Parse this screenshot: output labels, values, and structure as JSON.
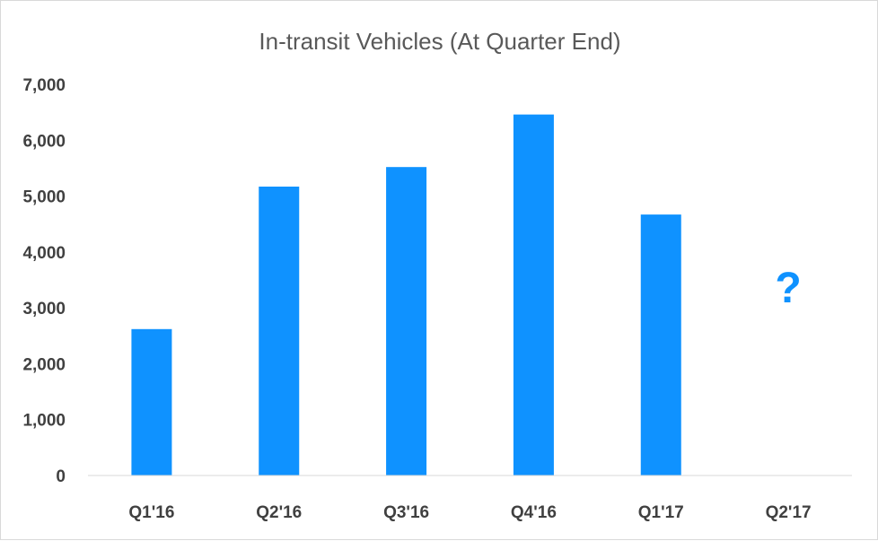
{
  "chart_data": {
    "type": "bar",
    "title": "In-transit Vehicles (At Quarter End)",
    "xlabel": "",
    "ylabel": "",
    "categories": [
      "Q1'16",
      "Q2'16",
      "Q3'16",
      "Q4'16",
      "Q1'17",
      "Q2'17"
    ],
    "values": [
      2620,
      5170,
      5520,
      6460,
      4670,
      null
    ],
    "ylim": [
      0,
      7000
    ],
    "yticks": [
      "0",
      "1,000",
      "2,000",
      "3,000",
      "4,000",
      "5,000",
      "6,000",
      "7,000"
    ],
    "grid": false,
    "legend": "none",
    "bar_color": "#0f92ff",
    "annotations": [
      {
        "category": "Q2'17",
        "text": "?",
        "color": "#0f92ff"
      }
    ]
  }
}
